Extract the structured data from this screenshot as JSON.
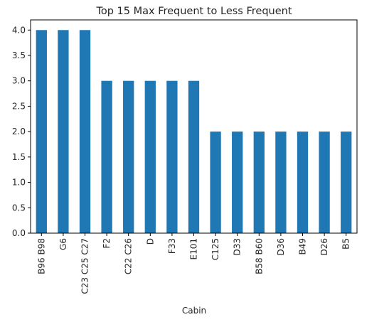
{
  "chart_data": {
    "type": "bar",
    "title": "Top 15 Max Frequent to Less Frequent",
    "xlabel": "Cabin",
    "ylabel": "",
    "categories": [
      "B96 B98",
      "G6",
      "C23 C25 C27",
      "F2",
      "C22 C26",
      "D",
      "F33",
      "E101",
      "C125",
      "D33",
      "B58 B60",
      "D36",
      "B49",
      "D26",
      "B5"
    ],
    "values": [
      4,
      4,
      4,
      3,
      3,
      3,
      3,
      3,
      2,
      2,
      2,
      2,
      2,
      2,
      2
    ],
    "ylim": [
      0,
      4.2
    ],
    "yticks": [
      "0.0",
      "0.5",
      "1.0",
      "1.5",
      "2.0",
      "2.5",
      "3.0",
      "3.5",
      "4.0"
    ],
    "bar_color": "#1f77b4",
    "grid": false,
    "legend": "none"
  }
}
